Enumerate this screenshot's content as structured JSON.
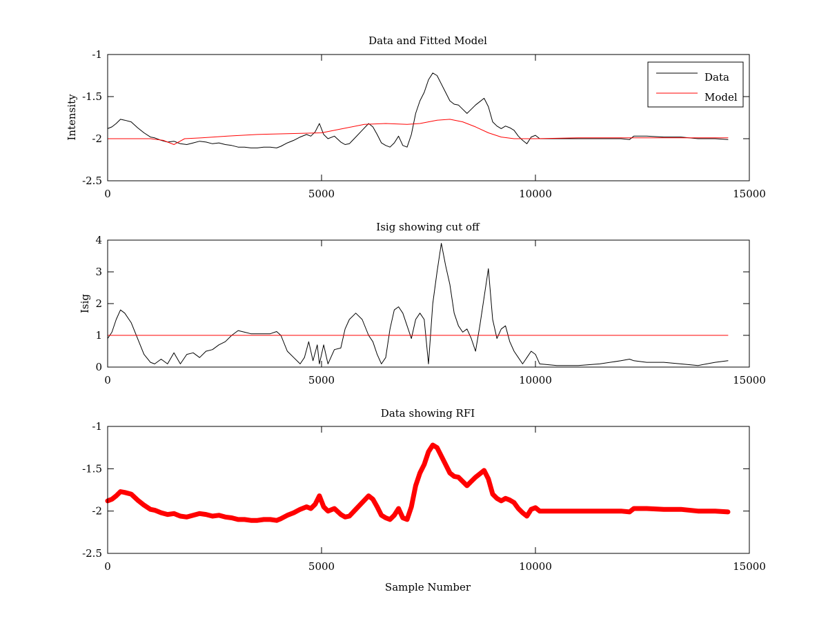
{
  "chart_data": [
    {
      "type": "line",
      "title": "Data and Fitted Model",
      "xlabel": "",
      "ylabel": "Intensity",
      "xlim": [
        0,
        15000
      ],
      "ylim": [
        -2.5,
        -1
      ],
      "xticks": [
        0,
        5000,
        10000,
        15000
      ],
      "yticks": [
        -2.5,
        -2,
        -1.5,
        -1
      ],
      "xtick_labels": [
        "0",
        "5000",
        "10000",
        "15000"
      ],
      "ytick_labels": [
        "-2.5",
        "-2",
        "-1.5",
        "-1"
      ],
      "grid": false,
      "legend": "top-right",
      "series": [
        {
          "name": "Data",
          "color": "#000000",
          "x": [
            0,
            100,
            200,
            300,
            400,
            550,
            700,
            850,
            1000,
            1100,
            1250,
            1400,
            1550,
            1700,
            1850,
            2000,
            2150,
            2300,
            2450,
            2600,
            2750,
            2900,
            3050,
            3200,
            3350,
            3500,
            3650,
            3800,
            3950,
            4050,
            4200,
            4350,
            4500,
            4650,
            4750,
            4850,
            4950,
            5050,
            5150,
            5300,
            5450,
            5550,
            5650,
            5800,
            5950,
            6100,
            6200,
            6300,
            6400,
            6500,
            6600,
            6700,
            6800,
            6900,
            7000,
            7100,
            7200,
            7300,
            7400,
            7500,
            7600,
            7700,
            7800,
            7900,
            8000,
            8100,
            8200,
            8300,
            8400,
            8500,
            8600,
            8700,
            8800,
            8900,
            9000,
            9100,
            9200,
            9300,
            9400,
            9500,
            9600,
            9700,
            9800,
            9900,
            10000,
            10100,
            10500,
            11000,
            11500,
            12000,
            12200,
            12300,
            12600,
            13000,
            13400,
            13800,
            14200,
            14500
          ],
          "y": [
            -1.88,
            -1.86,
            -1.82,
            -1.77,
            -1.78,
            -1.8,
            -1.87,
            -1.93,
            -1.98,
            -1.99,
            -2.02,
            -2.04,
            -2.03,
            -2.06,
            -2.07,
            -2.05,
            -2.03,
            -2.04,
            -2.06,
            -2.05,
            -2.07,
            -2.08,
            -2.1,
            -2.1,
            -2.11,
            -2.11,
            -2.1,
            -2.1,
            -2.11,
            -2.09,
            -2.05,
            -2.02,
            -1.98,
            -1.95,
            -1.97,
            -1.92,
            -1.82,
            -1.95,
            -2.0,
            -1.97,
            -2.04,
            -2.07,
            -2.06,
            -1.98,
            -1.9,
            -1.82,
            -1.86,
            -1.95,
            -2.05,
            -2.08,
            -2.1,
            -2.05,
            -1.97,
            -2.08,
            -2.1,
            -1.95,
            -1.7,
            -1.55,
            -1.45,
            -1.3,
            -1.22,
            -1.25,
            -1.35,
            -1.45,
            -1.55,
            -1.59,
            -1.6,
            -1.65,
            -1.7,
            -1.65,
            -1.6,
            -1.56,
            -1.52,
            -1.62,
            -1.8,
            -1.85,
            -1.88,
            -1.85,
            -1.87,
            -1.9,
            -1.97,
            -2.02,
            -2.06,
            -1.98,
            -1.96,
            -2.0,
            -2.0,
            -2.0,
            -2.0,
            -2.0,
            -2.01,
            -1.97,
            -1.97,
            -1.98,
            -1.98,
            -2.0,
            -2.0,
            -2.01
          ]
        },
        {
          "name": "Model",
          "color": "#ff0000",
          "x": [
            0,
            500,
            1000,
            1300,
            1550,
            1800,
            2200,
            2800,
            3500,
            4200,
            5000,
            5500,
            6000,
            6500,
            7000,
            7300,
            7700,
            8000,
            8300,
            8600,
            8900,
            9200,
            9500,
            10000,
            11000,
            12000,
            13000,
            14000,
            14500
          ],
          "y": [
            -2.0,
            -2.0,
            -2.0,
            -2.02,
            -2.07,
            -2.0,
            -1.99,
            -1.97,
            -1.95,
            -1.94,
            -1.93,
            -1.88,
            -1.83,
            -1.82,
            -1.83,
            -1.82,
            -1.78,
            -1.77,
            -1.8,
            -1.86,
            -1.93,
            -1.98,
            -2.0,
            -2.0,
            -1.99,
            -1.99,
            -1.99,
            -1.99,
            -1.99
          ]
        }
      ]
    },
    {
      "type": "line",
      "title": "Isig showing cut off",
      "xlabel": "",
      "ylabel": "Isig",
      "xlim": [
        0,
        15000
      ],
      "ylim": [
        0,
        4
      ],
      "xticks": [
        0,
        5000,
        10000,
        15000
      ],
      "yticks": [
        0,
        1,
        2,
        3,
        4
      ],
      "xtick_labels": [
        "0",
        "5000",
        "10000",
        "15000"
      ],
      "ytick_labels": [
        "0",
        "1",
        "2",
        "3",
        "4"
      ],
      "grid": false,
      "legend": "none",
      "series": [
        {
          "color": "#000000",
          "x": [
            0,
            100,
            200,
            300,
            400,
            550,
            700,
            850,
            1000,
            1100,
            1250,
            1400,
            1550,
            1700,
            1850,
            2000,
            2150,
            2300,
            2450,
            2600,
            2750,
            2900,
            3050,
            3200,
            3350,
            3500,
            3650,
            3800,
            3950,
            4050,
            4200,
            4350,
            4500,
            4600,
            4700,
            4800,
            4900,
            4950,
            5050,
            5150,
            5300,
            5450,
            5550,
            5650,
            5800,
            5950,
            6100,
            6200,
            6300,
            6400,
            6500,
            6600,
            6700,
            6800,
            6900,
            7000,
            7100,
            7200,
            7300,
            7400,
            7500,
            7600,
            7700,
            7800,
            7900,
            8000,
            8100,
            8200,
            8300,
            8400,
            8500,
            8600,
            8700,
            8800,
            8900,
            9000,
            9100,
            9200,
            9300,
            9400,
            9500,
            9600,
            9700,
            9800,
            9900,
            10000,
            10100,
            10500,
            11000,
            11500,
            12000,
            12200,
            12300,
            12600,
            13000,
            13400,
            13800,
            14200,
            14500
          ],
          "y": [
            0.9,
            1.1,
            1.5,
            1.8,
            1.7,
            1.4,
            0.9,
            0.4,
            0.15,
            0.1,
            0.25,
            0.1,
            0.45,
            0.1,
            0.4,
            0.45,
            0.3,
            0.5,
            0.55,
            0.7,
            0.8,
            1.0,
            1.15,
            1.1,
            1.05,
            1.05,
            1.05,
            1.05,
            1.12,
            1.0,
            0.5,
            0.3,
            0.1,
            0.3,
            0.8,
            0.2,
            0.7,
            0.1,
            0.7,
            0.1,
            0.55,
            0.6,
            1.2,
            1.5,
            1.7,
            1.5,
            1.0,
            0.8,
            0.4,
            0.1,
            0.3,
            1.2,
            1.8,
            1.9,
            1.7,
            1.3,
            0.9,
            1.5,
            1.7,
            1.5,
            0.1,
            2.0,
            3.0,
            3.9,
            3.2,
            2.6,
            1.7,
            1.3,
            1.1,
            1.2,
            0.9,
            0.5,
            1.3,
            2.2,
            3.1,
            1.5,
            0.9,
            1.2,
            1.3,
            0.8,
            0.5,
            0.3,
            0.1,
            0.3,
            0.5,
            0.4,
            0.1,
            0.05,
            0.05,
            0.1,
            0.2,
            0.25,
            0.2,
            0.15,
            0.15,
            0.1,
            0.05,
            0.15,
            0.2
          ]
        },
        {
          "color": "#ff0000",
          "x": [
            0,
            14500
          ],
          "y": [
            1,
            1
          ]
        }
      ]
    },
    {
      "type": "line",
      "title": "Data showing RFI",
      "xlabel": "Sample Number",
      "ylabel": "",
      "xlim": [
        0,
        15000
      ],
      "ylim": [
        -2.5,
        -1
      ],
      "xticks": [
        0,
        5000,
        10000,
        15000
      ],
      "yticks": [
        -2.5,
        -2,
        -1.5,
        -1
      ],
      "xtick_labels": [
        "0",
        "5000",
        "10000",
        "15000"
      ],
      "ytick_labels": [
        "-2.5",
        "-2",
        "-1.5",
        "-1"
      ],
      "grid": false,
      "legend": "none",
      "series": [
        {
          "color": "#ff0000",
          "x": [
            0,
            100,
            200,
            300,
            400,
            550,
            700,
            850,
            1000,
            1100,
            1250,
            1400,
            1550,
            1700,
            1850,
            2000,
            2150,
            2300,
            2450,
            2600,
            2750,
            2900,
            3050,
            3200,
            3350,
            3500,
            3650,
            3800,
            3950,
            4050,
            4200,
            4350,
            4500,
            4650,
            4750,
            4850,
            4950,
            5050,
            5150,
            5300,
            5450,
            5550,
            5650,
            5800,
            5950,
            6100,
            6200,
            6300,
            6400,
            6500,
            6600,
            6700,
            6800,
            6900,
            7000,
            7100,
            7200,
            7300,
            7400,
            7500,
            7600,
            7700,
            7800,
            7900,
            8000,
            8100,
            8200,
            8300,
            8400,
            8500,
            8600,
            8700,
            8800,
            8900,
            9000,
            9100,
            9200,
            9300,
            9400,
            9500,
            9600,
            9700,
            9800,
            9900,
            10000,
            10100,
            10500,
            11000,
            11500,
            12000,
            12200,
            12300,
            12600,
            13000,
            13400,
            13800,
            14200,
            14500
          ],
          "y": [
            -1.88,
            -1.86,
            -1.82,
            -1.77,
            -1.78,
            -1.8,
            -1.87,
            -1.93,
            -1.98,
            -1.99,
            -2.02,
            -2.04,
            -2.03,
            -2.06,
            -2.07,
            -2.05,
            -2.03,
            -2.04,
            -2.06,
            -2.05,
            -2.07,
            -2.08,
            -2.1,
            -2.1,
            -2.11,
            -2.11,
            -2.1,
            -2.1,
            -2.11,
            -2.09,
            -2.05,
            -2.02,
            -1.98,
            -1.95,
            -1.97,
            -1.92,
            -1.82,
            -1.95,
            -2.0,
            -1.97,
            -2.04,
            -2.07,
            -2.06,
            -1.98,
            -1.9,
            -1.82,
            -1.86,
            -1.95,
            -2.05,
            -2.08,
            -2.1,
            -2.05,
            -1.97,
            -2.08,
            -2.1,
            -1.95,
            -1.7,
            -1.55,
            -1.45,
            -1.3,
            -1.22,
            -1.25,
            -1.35,
            -1.45,
            -1.55,
            -1.59,
            -1.6,
            -1.65,
            -1.7,
            -1.65,
            -1.6,
            -1.56,
            -1.52,
            -1.62,
            -1.8,
            -1.85,
            -1.88,
            -1.85,
            -1.87,
            -1.9,
            -1.97,
            -2.02,
            -2.06,
            -1.98,
            -1.96,
            -2.0,
            -2.0,
            -2.0,
            -2.0,
            -2.0,
            -2.01,
            -1.97,
            -1.97,
            -1.98,
            -1.98,
            -2.0,
            -2.0,
            -2.01
          ]
        }
      ]
    }
  ]
}
